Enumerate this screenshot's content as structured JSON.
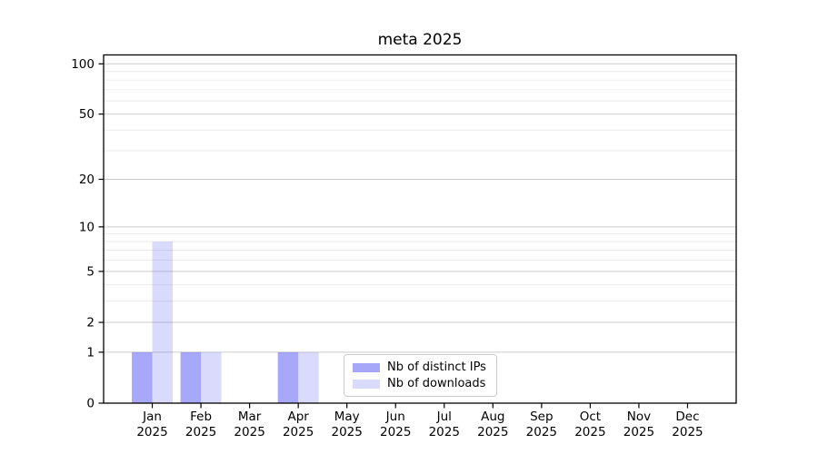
{
  "chart_data": {
    "type": "bar",
    "title": "meta 2025",
    "categories": [
      "Jan",
      "Feb",
      "Mar",
      "Apr",
      "May",
      "Jun",
      "Jul",
      "Aug",
      "Sep",
      "Oct",
      "Nov",
      "Dec"
    ],
    "year_label": "2025",
    "series": [
      {
        "id": "distinct-ips",
        "name": "Nb of distinct IPs",
        "values": [
          1,
          1,
          0,
          1,
          0,
          0,
          0,
          0,
          0,
          0,
          0,
          0
        ],
        "swatch": "#a7a7f9",
        "opacity": 0.53
      },
      {
        "id": "downloads",
        "name": "Nb of downloads",
        "values": [
          8,
          1,
          0,
          1,
          0,
          0,
          0,
          0,
          0,
          0,
          0,
          0
        ],
        "swatch": "#dadafb",
        "opacity": 0.225
      }
    ],
    "y_ticks": [
      0,
      1,
      2,
      5,
      10,
      20,
      50,
      100
    ],
    "y_minor_ticks": [
      3,
      4,
      6,
      7,
      8,
      9,
      30,
      40,
      60,
      70,
      80,
      90
    ],
    "ylim": [
      0,
      113
    ],
    "yscale": "log10(1+v)",
    "grid": "horizontal-major-and-minor",
    "legend_position": "lower-center",
    "colors": {
      "bar_base": "#5a5af5",
      "grid_major": "#cccccc",
      "grid_minor": "#eaeaea",
      "axis": "#000000",
      "background": "#ffffff"
    }
  }
}
